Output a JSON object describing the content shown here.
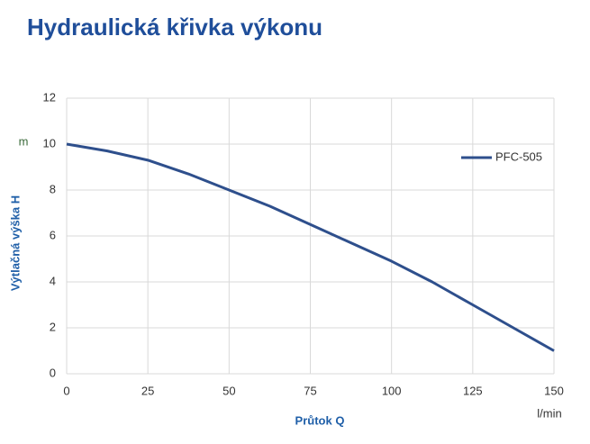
{
  "chart_data": {
    "type": "line",
    "title": "Hydraulická křivka výkonu",
    "y_label": "Výtlačná výška H",
    "y_unit": "m",
    "x_label": "Průtok Q",
    "x_unit": "l/min",
    "x": [
      0,
      12.5,
      25,
      37.5,
      50,
      62.5,
      75,
      87.5,
      100,
      112.5,
      125,
      137.5,
      150
    ],
    "series": [
      {
        "name": "PFC-505",
        "color": "#2e4f8c",
        "values": [
          10,
          9.7,
          9.3,
          8.7,
          8,
          7.3,
          6.5,
          5.7,
          4.9,
          4,
          3,
          2,
          1
        ]
      }
    ],
    "xlim": [
      0,
      150
    ],
    "xticks": [
      0,
      25,
      50,
      75,
      100,
      125,
      150
    ],
    "ylim": [
      0,
      12
    ],
    "yticks": [
      0,
      2,
      4,
      6,
      8,
      10,
      12
    ],
    "grid": true,
    "legend": "top-right"
  }
}
